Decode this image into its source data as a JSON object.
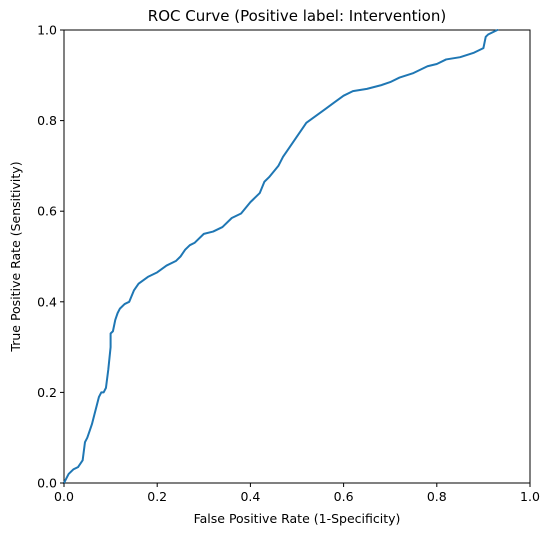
{
  "chart_data": {
    "type": "line",
    "title": "ROC Curve (Positive label: Intervention)",
    "xlabel": "False Positive Rate (1-Specificity)",
    "ylabel": "True Positive Rate (Sensitivity)",
    "xlim": [
      0.0,
      1.0
    ],
    "ylim": [
      0.0,
      1.0
    ],
    "xticks": [
      "0.0",
      "0.2",
      "0.4",
      "0.6",
      "0.8",
      "1.0"
    ],
    "yticks": [
      "0.0",
      "0.2",
      "0.4",
      "0.6",
      "0.8",
      "1.0"
    ],
    "grid": false,
    "legend": "none",
    "series": [
      {
        "color": "#1f77b4",
        "x": [
          0.0,
          0.005,
          0.01,
          0.02,
          0.03,
          0.04,
          0.045,
          0.05,
          0.055,
          0.06,
          0.065,
          0.07,
          0.075,
          0.08,
          0.085,
          0.09,
          0.095,
          0.1,
          0.1,
          0.105,
          0.11,
          0.115,
          0.12,
          0.13,
          0.14,
          0.15,
          0.16,
          0.18,
          0.2,
          0.22,
          0.24,
          0.25,
          0.26,
          0.27,
          0.28,
          0.3,
          0.32,
          0.34,
          0.36,
          0.38,
          0.4,
          0.42,
          0.43,
          0.44,
          0.46,
          0.47,
          0.48,
          0.5,
          0.52,
          0.54,
          0.56,
          0.58,
          0.6,
          0.62,
          0.65,
          0.68,
          0.7,
          0.72,
          0.75,
          0.78,
          0.8,
          0.82,
          0.85,
          0.88,
          0.9,
          0.905,
          0.91,
          0.92,
          0.93
        ],
        "y": [
          0.0,
          0.01,
          0.02,
          0.03,
          0.035,
          0.05,
          0.09,
          0.1,
          0.115,
          0.13,
          0.15,
          0.17,
          0.19,
          0.2,
          0.2,
          0.21,
          0.25,
          0.3,
          0.33,
          0.335,
          0.36,
          0.375,
          0.385,
          0.395,
          0.4,
          0.425,
          0.44,
          0.455,
          0.465,
          0.48,
          0.49,
          0.5,
          0.515,
          0.525,
          0.53,
          0.55,
          0.555,
          0.565,
          0.585,
          0.595,
          0.62,
          0.64,
          0.665,
          0.675,
          0.7,
          0.72,
          0.735,
          0.765,
          0.795,
          0.81,
          0.825,
          0.84,
          0.855,
          0.865,
          0.87,
          0.878,
          0.885,
          0.895,
          0.905,
          0.92,
          0.925,
          0.935,
          0.94,
          0.95,
          0.96,
          0.985,
          0.99,
          0.995,
          1.0
        ]
      }
    ]
  }
}
